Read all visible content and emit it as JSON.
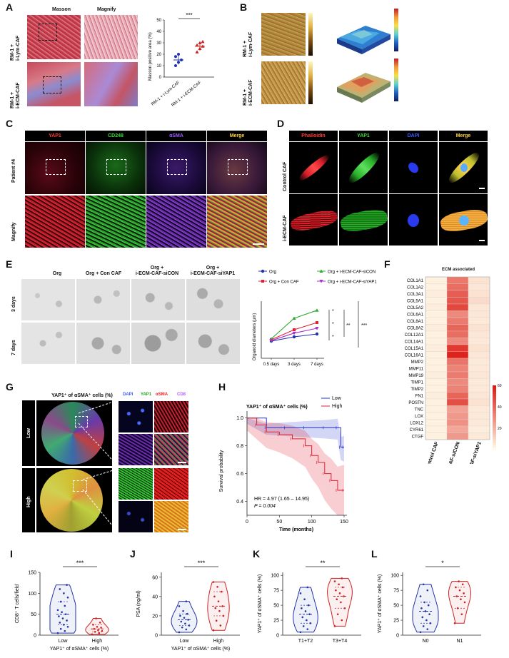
{
  "panels": {
    "A": {
      "label": "A",
      "col_masson": "Masson",
      "col_magnify": "Magnify",
      "row1": "RM-1 +\ni-Lym-CAF",
      "row2": "RM-1 +\ni-ECM-CAF",
      "chart_sig": "***",
      "ylabel": "Masson positive area (%)",
      "yticks": [
        "0",
        "10",
        "20",
        "30",
        "40",
        "50"
      ],
      "xcats": [
        "RM-1 + i-Lym-CAF",
        "RM-1 + i-ECM-CAF"
      ]
    },
    "B": {
      "label": "B",
      "row1": "RM-1 +\ni-Lym-CAF",
      "row2": "RM-1 +\ni-ECM-CAF"
    },
    "C": {
      "label": "C",
      "channels": [
        "YAP1",
        "CD248",
        "αSMA",
        "Merge"
      ],
      "channel_colors": [
        "#ff3b3b",
        "#3bdc3b",
        "#9a5bff",
        "#ffd23b"
      ],
      "row1": "Patient #4",
      "row2": "Magnify"
    },
    "D": {
      "label": "D",
      "channels": [
        "Phalloidin",
        "YAP1",
        "DAPI",
        "Merge"
      ],
      "channel_colors": [
        "#ff3b3b",
        "#3bdc3b",
        "#3b5bff",
        "#ffd23b"
      ],
      "row1": "Control CAF",
      "row2": "i-ECM-CAF"
    },
    "E": {
      "label": "E",
      "col_headers": [
        "Org",
        "Org + Con CAF",
        "Org +\ni-ECM-CAF-siCON",
        "Org +\ni-ECM-CAF-siYAP1"
      ],
      "row1": "3 days",
      "row2": "7 days",
      "legend": [
        "Org",
        "Org + Con CAF",
        "Org + i-ECM-CAF-siCON",
        "Org + i-ECM-CAF-siYAP1"
      ],
      "ylabel": "Organoid diameters (μm)",
      "sig": [
        "*",
        "*",
        "*",
        "**",
        "***"
      ]
    },
    "F": {
      "label": "F",
      "title": "ECM associated",
      "genes": [
        "COL1A1",
        "COL1A2",
        "COL3A1",
        "COL5A1",
        "COL5A2",
        "COL6A1",
        "COL8A1",
        "COL8A2",
        "COL12A1",
        "COL14A1",
        "COL15A1",
        "COL16A1",
        "MMP2",
        "MMP11",
        "MMP19",
        "TIMP1",
        "TIMP2",
        "FN1",
        "POSTN",
        "TNC",
        "LOX",
        "LOXL2",
        "CYR61",
        "CTGF"
      ],
      "columns": [
        "Control CAF",
        "i-ECM-CAF-siCON",
        "i-ECM-CAF-siYAP1"
      ],
      "scale_ticks": [
        "60",
        "40",
        "20"
      ]
    },
    "G": {
      "label": "G",
      "title": "YAP1⁺ of αSMA⁺ cells (%)",
      "row1": "Low",
      "row2": "High",
      "channels": [
        "DAPI",
        "YAP1",
        "αSMA",
        "CD8"
      ],
      "channel_colors": [
        "#3b5bff",
        "#3bdc3b",
        "#ff3b3b",
        "#b35bff"
      ]
    },
    "H": {
      "label": "H",
      "title": "YAP1⁺ of αSMA⁺ cells (%)",
      "legend_low": "Low",
      "legend_high": "High",
      "ylabel": "Survival probability",
      "xlabel": "Time (months)",
      "hr": "HR = 4.97 (1.65 – 14.95)",
      "p": "P = 0.004",
      "yticks": [
        "0.4",
        "0.6",
        "0.8",
        "1.0"
      ],
      "xticks": [
        "0",
        "50",
        "100",
        "150"
      ]
    },
    "I": {
      "label": "I",
      "ylabel": "CD8⁺ T cells/field",
      "sig": "***",
      "cats": [
        "Low",
        "High"
      ],
      "xlabel": "YAP1⁺ of αSMA⁺ cells (%)",
      "yticks": [
        "0",
        "50",
        "100",
        "150"
      ]
    },
    "J": {
      "label": "J",
      "ylabel": "PSA (ng/ml)",
      "sig": "***",
      "cats": [
        "Low",
        "High"
      ],
      "xlabel": "YAP1⁺ of αSMA⁺ cells (%)",
      "yticks": [
        "0",
        "20",
        "40",
        "60"
      ]
    },
    "K": {
      "label": "K",
      "ylabel": "YAP1⁺ of αSMA⁺ cells (%)",
      "sig": "**",
      "cats": [
        "T1+T2",
        "T3+T4"
      ],
      "yticks": [
        "0",
        "25",
        "50",
        "75",
        "100"
      ]
    },
    "L": {
      "label": "L",
      "ylabel": "YAP1⁺ of αSMA⁺ cells (%)",
      "sig": "*",
      "cats": [
        "N0",
        "N1"
      ],
      "yticks": [
        "0",
        "25",
        "50",
        "75",
        "100"
      ]
    }
  },
  "chart_data": [
    {
      "panel": "A",
      "type": "scatter",
      "categories": [
        "RM-1 + i-Lym-CAF",
        "RM-1 + i-ECM-CAF"
      ],
      "series": [
        {
          "name": "RM-1 + i-Lym-CAF",
          "values": [
            10,
            13,
            15,
            18,
            20
          ],
          "mean": 15,
          "color": "#2233aa"
        },
        {
          "name": "RM-1 + i-ECM-CAF",
          "values": [
            22,
            25,
            27,
            28,
            30,
            31
          ],
          "mean": 27,
          "color": "#cc2222"
        }
      ],
      "ylim": [
        0,
        50
      ]
    },
    {
      "panel": "E",
      "type": "line",
      "x": [
        "0.5 days",
        "3 days",
        "7 days"
      ],
      "series": [
        {
          "name": "Org",
          "values": [
            60,
            75,
            85
          ],
          "color": "#2233aa"
        },
        {
          "name": "Org + Con CAF",
          "values": [
            65,
            100,
            125
          ],
          "color": "#dd2233"
        },
        {
          "name": "Org + i-ECM-CAF-siCON",
          "values": [
            68,
            140,
            168
          ],
          "color": "#33aa33"
        },
        {
          "name": "Org + i-ECM-CAF-siYAP1",
          "values": [
            62,
            88,
            105
          ],
          "color": "#aa33cc"
        }
      ],
      "ylim": [
        0,
        200
      ]
    },
    {
      "panel": "F",
      "type": "heatmap",
      "columns": [
        "Control CAF",
        "i-ECM-CAF-siCON",
        "i-ECM-CAF-siYAP1"
      ],
      "rows": [
        "COL1A1",
        "COL1A2",
        "COL3A1",
        "COL5A1",
        "COL5A2",
        "COL6A1",
        "COL8A1",
        "COL8A2",
        "COL12A1",
        "COL14A1",
        "COL15A1",
        "COL16A1",
        "MMP2",
        "MMP11",
        "MMP19",
        "TIMP1",
        "TIMP2",
        "FN1",
        "POSTN",
        "TNC",
        "LOX",
        "LOXL2",
        "CYR61",
        "CTGF"
      ],
      "values": [
        [
          2,
          35,
          6
        ],
        [
          2,
          38,
          5
        ],
        [
          3,
          42,
          6
        ],
        [
          2,
          44,
          8
        ],
        [
          3,
          48,
          5
        ],
        [
          2,
          30,
          5
        ],
        [
          2,
          34,
          4
        ],
        [
          3,
          40,
          6
        ],
        [
          2,
          38,
          5
        ],
        [
          2,
          30,
          4
        ],
        [
          3,
          52,
          6
        ],
        [
          2,
          58,
          5
        ],
        [
          2,
          36,
          4
        ],
        [
          2,
          32,
          4
        ],
        [
          3,
          34,
          5
        ],
        [
          2,
          30,
          4
        ],
        [
          2,
          32,
          4
        ],
        [
          3,
          40,
          5
        ],
        [
          2,
          46,
          6
        ],
        [
          2,
          24,
          4
        ],
        [
          2,
          26,
          4
        ],
        [
          2,
          28,
          4
        ],
        [
          2,
          22,
          3
        ],
        [
          2,
          26,
          4
        ]
      ],
      "zlim": [
        0,
        60
      ]
    },
    {
      "panel": "H",
      "type": "line",
      "series": [
        {
          "name": "Low",
          "color": "#2233cc",
          "x": [
            0,
            30,
            60,
            90,
            120,
            140,
            145,
            150
          ],
          "values": [
            1.0,
            0.93,
            0.93,
            0.93,
            0.93,
            0.93,
            0.79,
            0.79
          ]
        },
        {
          "name": "High",
          "color": "#dd2233",
          "x": [
            0,
            15,
            30,
            50,
            70,
            90,
            100,
            110,
            120,
            130,
            140,
            150
          ],
          "values": [
            1.0,
            0.95,
            0.9,
            0.88,
            0.85,
            0.8,
            0.73,
            0.68,
            0.6,
            0.55,
            0.48,
            0.48
          ]
        }
      ],
      "xlim": [
        0,
        150
      ],
      "ylim": [
        0.3,
        1.05
      ]
    },
    {
      "panel": "I",
      "type": "scatter",
      "categories": [
        "Low",
        "High"
      ],
      "series": [
        {
          "name": "Low",
          "color": "#2233aa",
          "values": [
            5,
            10,
            15,
            20,
            25,
            30,
            35,
            40,
            45,
            50,
            55,
            60,
            70,
            80,
            90,
            100,
            110,
            120
          ]
        },
        {
          "name": "High",
          "color": "#cc2222",
          "values": [
            2,
            5,
            8,
            10,
            12,
            15,
            18,
            20,
            25,
            30,
            40
          ]
        }
      ],
      "ylim": [
        0,
        150
      ]
    },
    {
      "panel": "J",
      "type": "scatter",
      "categories": [
        "Low",
        "High"
      ],
      "series": [
        {
          "name": "Low",
          "color": "#2233aa",
          "values": [
            3,
            6,
            8,
            10,
            12,
            14,
            16,
            18,
            20,
            22,
            25,
            30,
            35
          ]
        },
        {
          "name": "High",
          "color": "#cc2222",
          "values": [
            5,
            10,
            15,
            20,
            25,
            28,
            30,
            35,
            40,
            45,
            50,
            55
          ]
        }
      ],
      "ylim": [
        0,
        65
      ]
    },
    {
      "panel": "K",
      "type": "scatter",
      "categories": [
        "T1+T2",
        "T3+T4"
      ],
      "series": [
        {
          "name": "T1+T2",
          "color": "#2233aa",
          "values": [
            5,
            10,
            15,
            20,
            25,
            30,
            35,
            40,
            45,
            50,
            60,
            70,
            80
          ]
        },
        {
          "name": "T3+T4",
          "color": "#cc2222",
          "values": [
            15,
            25,
            35,
            45,
            55,
            60,
            65,
            70,
            75,
            80,
            85,
            90,
            95
          ]
        }
      ],
      "ylim": [
        0,
        105
      ]
    },
    {
      "panel": "L",
      "type": "scatter",
      "categories": [
        "N0",
        "N1"
      ],
      "series": [
        {
          "name": "N0",
          "color": "#2233aa",
          "values": [
            5,
            10,
            15,
            20,
            25,
            30,
            35,
            40,
            45,
            50,
            55,
            65,
            75,
            85
          ]
        },
        {
          "name": "N1",
          "color": "#cc2222",
          "values": [
            20,
            35,
            45,
            55,
            60,
            65,
            70,
            75,
            80,
            85,
            90
          ]
        }
      ],
      "ylim": [
        0,
        105
      ]
    }
  ]
}
